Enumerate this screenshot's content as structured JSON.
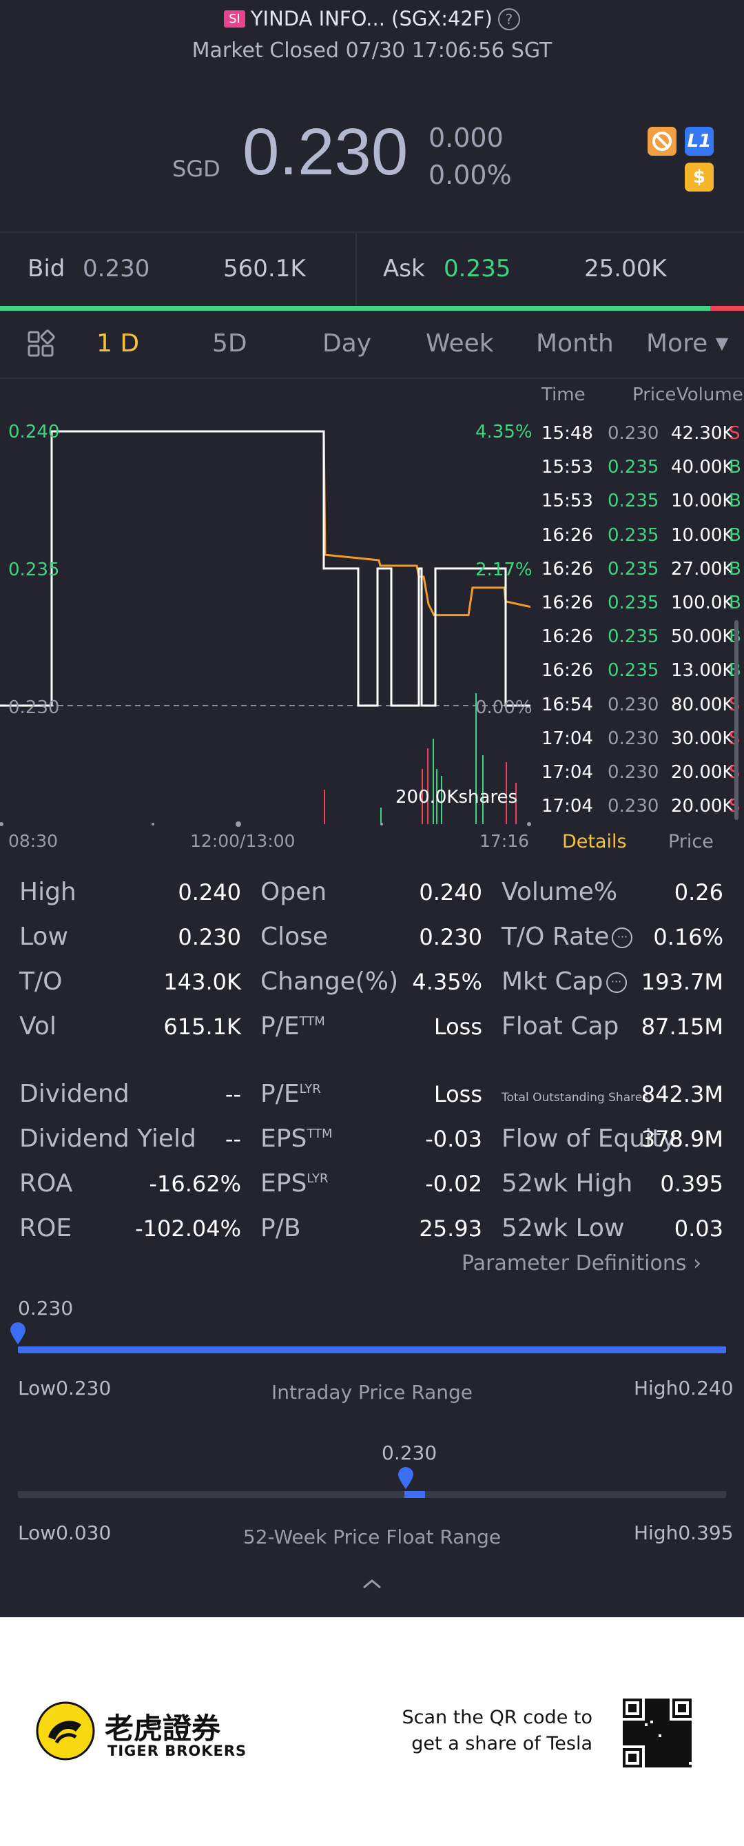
{
  "header": {
    "badge": "SI",
    "title": "YINDA INFO... (SGX:42F)",
    "status": "Market Closed 07/30 17:06:56 SGT"
  },
  "quote": {
    "currency": "SGD",
    "price": "0.230",
    "change": "0.000",
    "change_pct": "0.00%",
    "badges": [
      {
        "icon": "no-sign-icon",
        "color": "#f0a041"
      },
      {
        "icon": "level1-icon",
        "label": "L1",
        "color": "#3478f6"
      },
      {
        "icon": "dollar-icon",
        "label": "$",
        "color": "#f4b52b"
      }
    ]
  },
  "orderbook": {
    "bid_label": "Bid",
    "bid_price": "0.230",
    "bid_size": "560.1K",
    "ask_label": "Ask",
    "ask_price": "0.235",
    "ask_size": "25.00K",
    "bid_share": 0.955
  },
  "tabs": {
    "items": [
      "1 D",
      "5D",
      "Day",
      "Week",
      "Month",
      "More"
    ],
    "active": "1 D"
  },
  "chart": {
    "y_labels": [
      "0.240",
      "0.235",
      "0.230"
    ],
    "pct_labels": [
      "4.35%",
      "2.17%",
      "0.00%"
    ],
    "x_labels": [
      "08:30",
      "12:00/13:00",
      "17:16"
    ],
    "volume_label": "200.0Kshares",
    "colors": {
      "price": "#ffffff",
      "avg": "#f39a2a",
      "up": "#3ed481",
      "down": "#f0445b"
    }
  },
  "chart_data": {
    "type": "line",
    "ylim": [
      0.23,
      0.24
    ],
    "series": [
      {
        "values": [
          0.23,
          0.24,
          0.24,
          0.235,
          0.235,
          0.23,
          0.235,
          0.235,
          0.23,
          0.23,
          0.235,
          0.235,
          0.23
        ]
      },
      {
        "values": [
          0.23,
          0.24,
          0.24,
          0.2355,
          0.2353,
          0.2351,
          0.2347,
          0.2337,
          0.2333,
          0.2336,
          0.2343,
          0.2343,
          0.2338
        ]
      }
    ]
  },
  "trades": {
    "headers": [
      "Time",
      "Price",
      "Volume"
    ],
    "rows": [
      {
        "time": "15:48",
        "price": "0.230",
        "volume": "42.30K",
        "side": "S"
      },
      {
        "time": "15:53",
        "price": "0.235",
        "volume": "40.00K",
        "side": "B"
      },
      {
        "time": "15:53",
        "price": "0.235",
        "volume": "10.00K",
        "side": "B"
      },
      {
        "time": "16:26",
        "price": "0.235",
        "volume": "10.00K",
        "side": "B"
      },
      {
        "time": "16:26",
        "price": "0.235",
        "volume": "27.00K",
        "side": "B"
      },
      {
        "time": "16:26",
        "price": "0.235",
        "volume": "100.0K",
        "side": "B"
      },
      {
        "time": "16:26",
        "price": "0.235",
        "volume": "50.00K",
        "side": "B"
      },
      {
        "time": "16:26",
        "price": "0.235",
        "volume": "13.00K",
        "side": "B"
      },
      {
        "time": "16:54",
        "price": "0.230",
        "volume": "80.00K",
        "side": "S"
      },
      {
        "time": "17:04",
        "price": "0.230",
        "volume": "30.00K",
        "side": "S"
      },
      {
        "time": "17:04",
        "price": "0.230",
        "volume": "20.00K",
        "side": "S"
      },
      {
        "time": "17:04",
        "price": "0.230",
        "volume": "20.00K",
        "side": "S"
      }
    ],
    "tab_details": "Details",
    "tab_price": "Price"
  },
  "stats": {
    "col1": [
      {
        "label": "High",
        "value": "0.240"
      },
      {
        "label": "Low",
        "value": "0.230"
      },
      {
        "label": "T/O",
        "value": "143.0K"
      },
      {
        "label": "Vol",
        "value": "615.1K"
      },
      {
        "label": "Dividend",
        "value": "--"
      },
      {
        "label": "Dividend Yield",
        "value": "--"
      },
      {
        "label": "ROA",
        "value": "-16.62%"
      },
      {
        "label": "ROE",
        "value": "-102.04%"
      }
    ],
    "col2": [
      {
        "label": "Open",
        "sup": "",
        "value": "0.240"
      },
      {
        "label": "Close",
        "sup": "",
        "value": "0.230"
      },
      {
        "label": "Change(%)",
        "sup": "",
        "value": "4.35%"
      },
      {
        "label": "P/E",
        "sup": "TTM",
        "value": "Loss"
      },
      {
        "label": "P/E",
        "sup": "LYR",
        "value": "Loss"
      },
      {
        "label": "EPS",
        "sup": "TTM",
        "value": "-0.03"
      },
      {
        "label": "EPS",
        "sup": "LYR",
        "value": "-0.02"
      },
      {
        "label": "P/B",
        "sup": "",
        "value": "25.93"
      }
    ],
    "col3": [
      {
        "label": "Volume%",
        "value": "0.26"
      },
      {
        "label": "T/O Rate",
        "value": "0.16%"
      },
      {
        "label": "Mkt Cap",
        "value": "193.7M"
      },
      {
        "label": "Float Cap",
        "value": "87.15M"
      },
      {
        "label": "Total Outstanding Shares",
        "value": "842.3M"
      },
      {
        "label": "Flow of Equity",
        "value": "378.9M"
      },
      {
        "label": "52wk High",
        "value": "0.395"
      },
      {
        "label": "52wk Low",
        "value": "0.03"
      }
    ],
    "param_link": "Parameter Definitions"
  },
  "ranges": {
    "intraday": {
      "current": "0.230",
      "low": "Low0.230",
      "high": "High0.240",
      "title": "Intraday Price Range",
      "position": 0.0
    },
    "week52": {
      "current": "0.230",
      "low": "Low0.030",
      "high": "High0.395",
      "title": "52-Week Price Float Range",
      "position": 0.5479
    }
  },
  "footer": {
    "brand_cn": "老虎證券",
    "brand_en": "TIGER BROKERS",
    "promo_line1": "Scan the QR code to",
    "promo_line2": "get a share of Tesla"
  }
}
